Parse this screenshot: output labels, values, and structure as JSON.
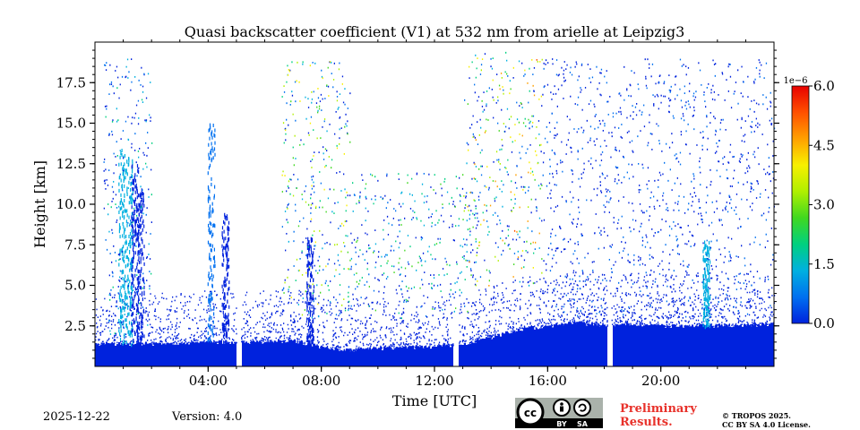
{
  "chart_data": {
    "type": "heatmap",
    "title": "Quasi backscatter coefficient (V1) at 532 nm from arielle at Leipzig3",
    "xlabel": "Time [UTC]",
    "ylabel": "Height [km]",
    "x_range_hours": [
      0,
      24
    ],
    "y_range_km": [
      0,
      20
    ],
    "x_ticks": [
      4,
      8,
      12,
      16,
      20
    ],
    "x_tick_labels": [
      "04:00",
      "08:00",
      "12:00",
      "16:00",
      "20:00"
    ],
    "y_ticks": [
      2.5,
      5.0,
      7.5,
      10.0,
      12.5,
      15.0,
      17.5
    ],
    "y_tick_labels": [
      "2.5",
      "5.0",
      "7.5",
      "10.0",
      "12.5",
      "15.0",
      "17.5"
    ],
    "colorbar": {
      "min": 0.0,
      "max": 6.0,
      "ticks": [
        0.0,
        1.5,
        3.0,
        4.5,
        6.0
      ],
      "tick_labels": [
        "0.0",
        "1.5",
        "3.0",
        "4.5",
        "6.0"
      ],
      "exponent_label": "1e−6",
      "colormap": [
        "#0022dd",
        "#0070f0",
        "#00b0e0",
        "#00d080",
        "#40d820",
        "#b0f000",
        "#f8f000",
        "#ffa000",
        "#ff5000",
        "#e80000"
      ]
    },
    "boundary_layer_top_km": [
      [
        0.0,
        1.4
      ],
      [
        2.0,
        1.4
      ],
      [
        4.0,
        1.5
      ],
      [
        5.0,
        1.5
      ],
      [
        6.0,
        1.5
      ],
      [
        7.0,
        1.6
      ],
      [
        8.0,
        1.2
      ],
      [
        9.0,
        1.0
      ],
      [
        10.0,
        1.1
      ],
      [
        11.0,
        1.2
      ],
      [
        12.0,
        1.2
      ],
      [
        13.0,
        1.4
      ],
      [
        14.0,
        1.8
      ],
      [
        15.0,
        2.3
      ],
      [
        16.0,
        2.5
      ],
      [
        17.0,
        2.7
      ],
      [
        18.0,
        2.5
      ],
      [
        19.0,
        2.6
      ],
      [
        20.0,
        2.5
      ],
      [
        22.0,
        2.5
      ],
      [
        24.0,
        2.6
      ]
    ],
    "data_gaps_hours": [
      [
        5.0,
        5.15
      ],
      [
        12.65,
        12.85
      ],
      [
        18.1,
        18.25
      ]
    ],
    "dense_column_features": [
      {
        "time": 0.95,
        "top_km": 13.5,
        "intensity_1e6": 2.5
      },
      {
        "time": 1.2,
        "top_km": 13.0,
        "intensity_1e6": 2.0
      },
      {
        "time": 1.4,
        "top_km": 12.5,
        "intensity_1e6": 1.5
      },
      {
        "time": 1.6,
        "top_km": 11.0,
        "intensity_1e6": 1.0
      },
      {
        "time": 4.1,
        "top_km": 15.0,
        "intensity_1e6": 0.5
      },
      {
        "time": 4.6,
        "top_km": 9.5,
        "intensity_1e6": 0.5
      },
      {
        "time": 7.6,
        "top_km": 8.0,
        "intensity_1e6": 0.8
      },
      {
        "time": 21.6,
        "top_km": 7.8,
        "intensity_1e6": 1.8
      }
    ],
    "scattered_signal_regions": [
      {
        "t0": 6.6,
        "t1": 9.0,
        "h0": 3.0,
        "h1": 19.0,
        "level": 3.0
      },
      {
        "t0": 9.0,
        "t1": 13.5,
        "h0": 3.0,
        "h1": 12.0,
        "level": 2.0
      },
      {
        "t0": 13.0,
        "t1": 15.8,
        "h0": 5.0,
        "h1": 19.5,
        "level": 3.5
      },
      {
        "t0": 0.3,
        "t1": 2.0,
        "h0": 2.0,
        "h1": 19.0,
        "level": 1.5
      },
      {
        "t0": 15.8,
        "t1": 24.0,
        "h0": 3.0,
        "h1": 19.0,
        "level": 0.8
      }
    ]
  },
  "footer": {
    "date": "2025-12-22",
    "version": "Version: 4.0",
    "preliminary_line1": "Preliminary",
    "preliminary_line2": "Results.",
    "copyright_line1": "© TROPOS 2025.",
    "copyright_line2": "CC BY SA 4.0 License.",
    "license_badge_by": "BY",
    "license_badge_sa": "SA"
  }
}
